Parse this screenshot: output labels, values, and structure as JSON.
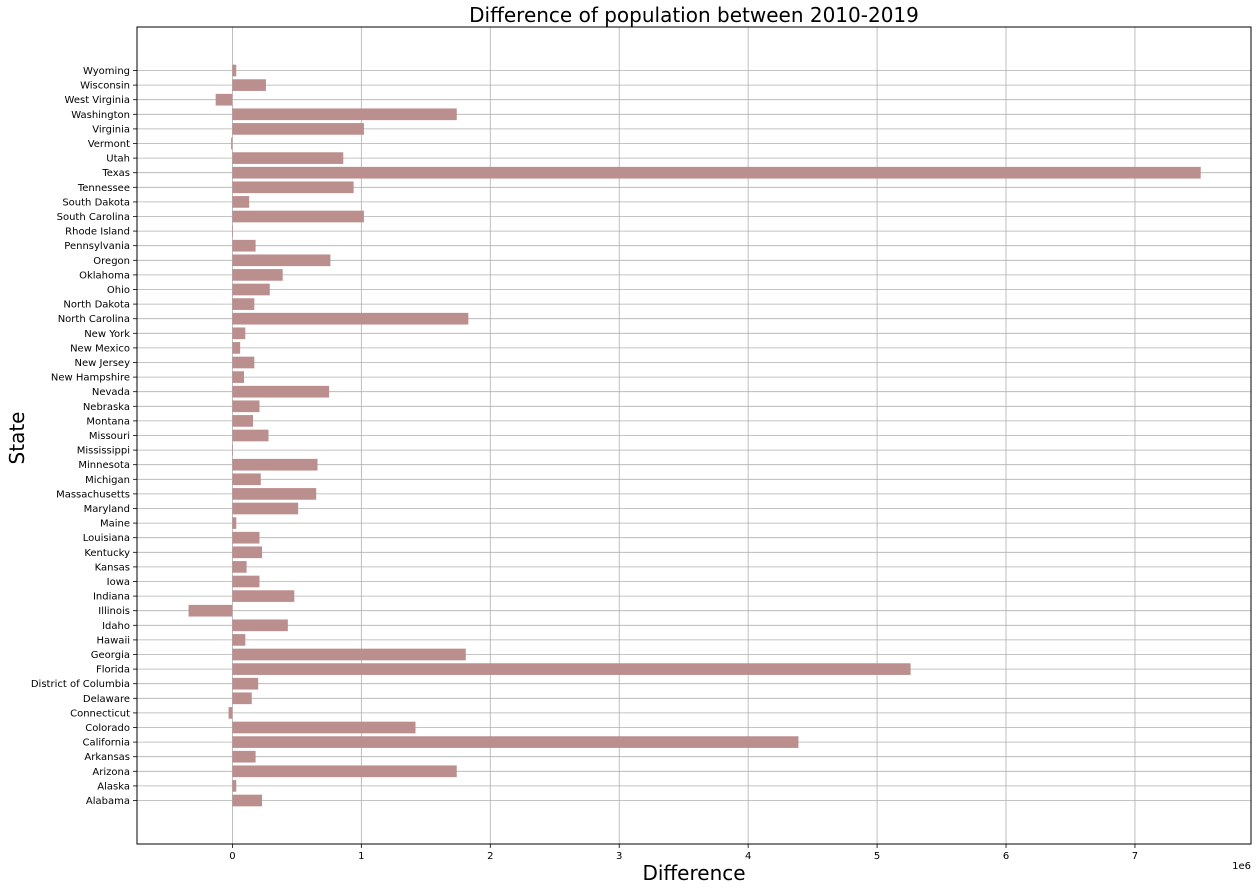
{
  "chart_data": {
    "type": "bar",
    "orientation": "horizontal",
    "title": "Difference of population between 2010-2019",
    "xlabel": "Difference",
    "ylabel": "State",
    "x_scale_label": "1e6",
    "xlim": [
      -0.74,
      7.9
    ],
    "x_ticks": [
      0,
      1,
      2,
      3,
      4,
      5,
      6,
      7
    ],
    "grid": true,
    "bar_color": "#bc8f8f",
    "categories": [
      "Alabama",
      "Alaska",
      "Arizona",
      "Arkansas",
      "California",
      "Colorado",
      "Connecticut",
      "Delaware",
      "District of Columbia",
      "Florida",
      "Georgia",
      "Hawaii",
      "Idaho",
      "Illinois",
      "Indiana",
      "Iowa",
      "Kansas",
      "Kentucky",
      "Louisiana",
      "Maine",
      "Maryland",
      "Massachusetts",
      "Michigan",
      "Minnesota",
      "Mississippi",
      "Missouri",
      "Montana",
      "Nebraska",
      "Nevada",
      "New Hampshire",
      "New Jersey",
      "New Mexico",
      "New York",
      "North Carolina",
      "North Dakota",
      "Ohio",
      "Oklahoma",
      "Oregon",
      "Pennsylvania",
      "Rhode Island",
      "South Carolina",
      "South Dakota",
      "Tennessee",
      "Texas",
      "Utah",
      "Vermont",
      "Virginia",
      "Washington",
      "West Virginia",
      "Wisconsin",
      "Wyoming"
    ],
    "values": [
      0.23,
      0.03,
      1.74,
      0.18,
      4.39,
      1.42,
      -0.03,
      0.15,
      0.2,
      5.26,
      1.81,
      0.1,
      0.43,
      -0.34,
      0.48,
      0.21,
      0.11,
      0.23,
      0.21,
      0.03,
      0.51,
      0.65,
      0.22,
      0.66,
      0.0,
      0.28,
      0.16,
      0.21,
      0.75,
      0.09,
      0.17,
      0.06,
      0.1,
      1.83,
      0.17,
      0.29,
      0.39,
      0.76,
      0.18,
      0.0,
      1.02,
      0.13,
      0.94,
      7.51,
      0.86,
      -0.01,
      1.02,
      1.74,
      -0.13,
      0.26,
      0.03
    ]
  }
}
